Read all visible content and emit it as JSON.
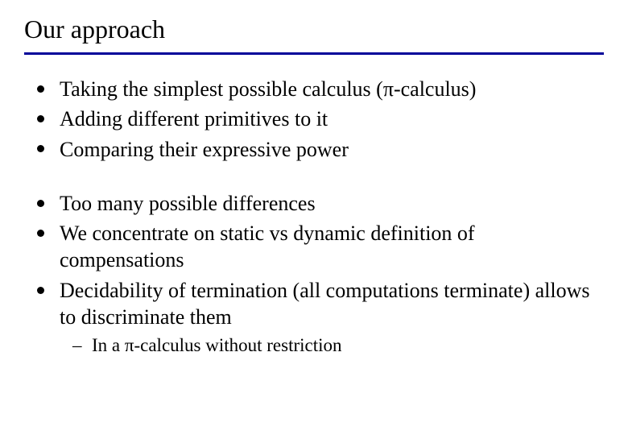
{
  "slide": {
    "title": "Our approach",
    "rule_color": "#000099",
    "background_color": "#ffffff",
    "text_color": "#000000",
    "title_fontsize": 32,
    "body_fontsize": 26,
    "sub_fontsize": 23,
    "bullet_shape": "disc",
    "bullet_color": "#000000",
    "sub_bullet_glyph": "–",
    "font_family": "Times New Roman",
    "group1": [
      "Taking the simplest possible calculus (π-calculus)",
      "Adding different primitives to it",
      "Comparing their expressive power"
    ],
    "group2": [
      "Too many possible differences",
      "We concentrate on static vs dynamic definition of compensations",
      "Decidability of termination (all computations terminate) allows to discriminate them"
    ],
    "sub_items": [
      "In a π-calculus without restriction"
    ]
  }
}
